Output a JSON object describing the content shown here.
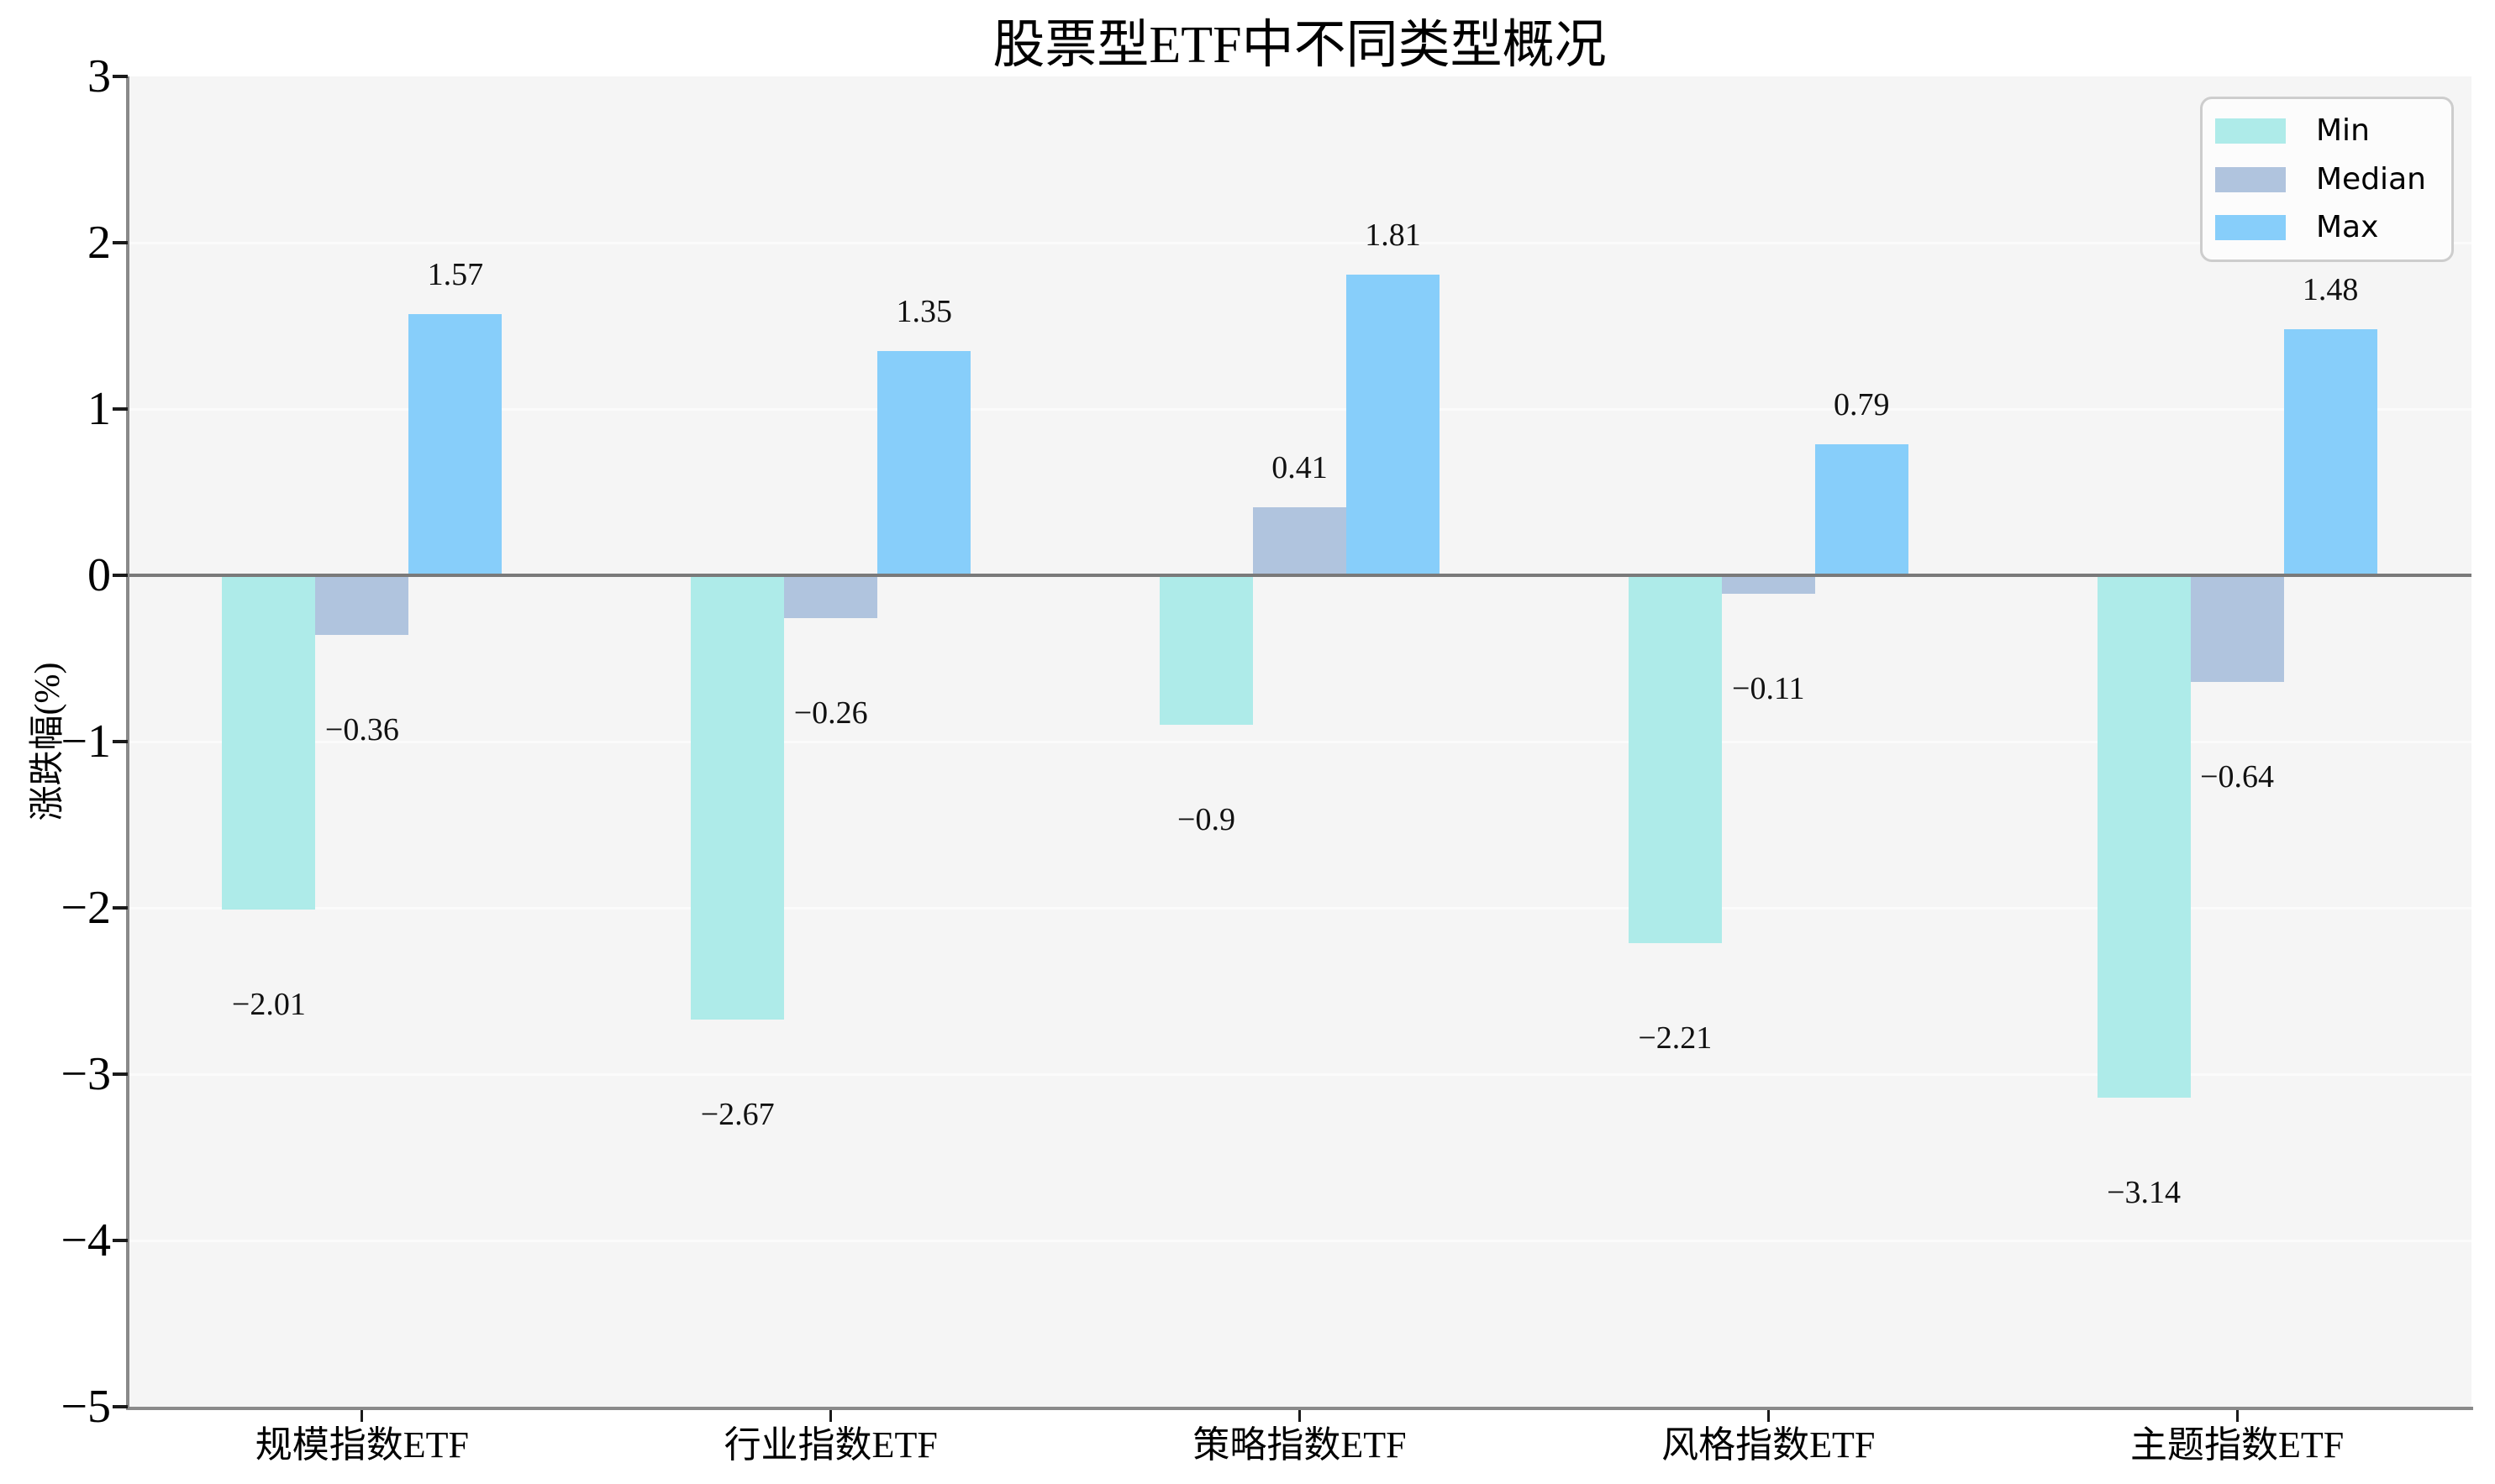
{
  "chart_data": {
    "type": "bar",
    "title": "股票型ETF中不同类型概况",
    "xlabel": "",
    "ylabel": "涨跌幅(%)",
    "categories": [
      "规模指数ETF",
      "行业指数ETF",
      "策略指数ETF",
      "风格指数ETF",
      "主题指数ETF"
    ],
    "series": [
      {
        "name": "Min",
        "color": "#AEEBE9",
        "values": [
          -2.01,
          -2.67,
          -0.9,
          -2.21,
          -3.14
        ]
      },
      {
        "name": "Median",
        "color": "#B0C4DE",
        "values": [
          -0.36,
          -0.26,
          0.41,
          -0.11,
          -0.64
        ]
      },
      {
        "name": "Max",
        "color": "#87CEFA",
        "values": [
          1.57,
          1.35,
          1.81,
          0.79,
          1.48
        ]
      }
    ],
    "ylim": [
      -5,
      3
    ],
    "yticks": [
      3,
      2,
      1,
      0,
      -1,
      -2,
      -3,
      -4,
      -5
    ],
    "grid": true,
    "bar_labels": true,
    "legend_position": "top-right"
  },
  "styles": {
    "plot_bg": "#F5F5F5",
    "grid_color": "#FBFBFB",
    "spine_color": "#8A8A8A",
    "zero_line_color": "#7A7A7A",
    "figure_bg": "#FFFFFF"
  }
}
